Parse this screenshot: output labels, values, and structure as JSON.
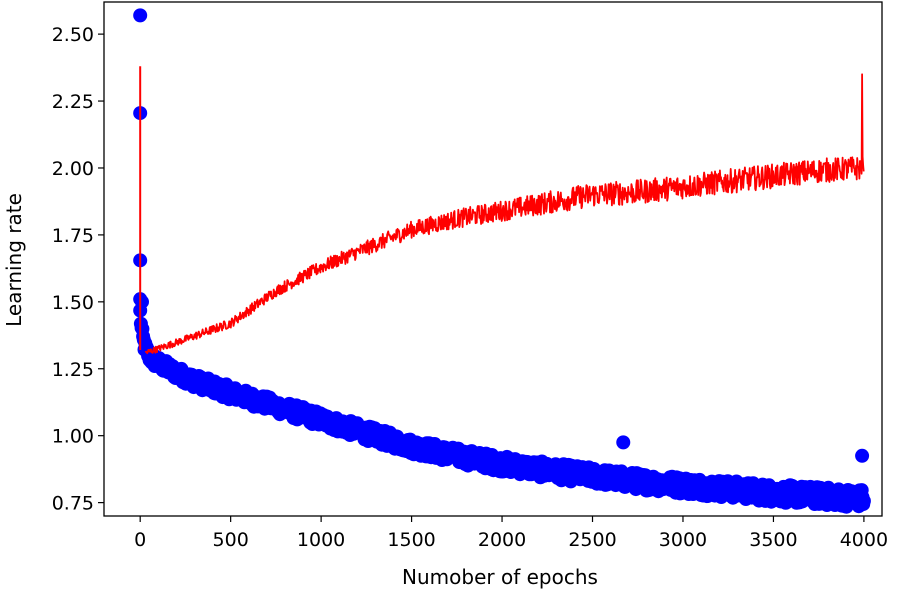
{
  "chart_data": {
    "type": "line+scatter",
    "title": "",
    "xlabel": "Numober of epochs",
    "ylabel": "Learning rate",
    "xlim": [
      -200,
      4100
    ],
    "ylim": [
      0.7,
      2.62
    ],
    "xticks": [
      0,
      500,
      1000,
      1500,
      2000,
      2500,
      3000,
      3500,
      4000
    ],
    "xtick_labels": [
      "0",
      "500",
      "1000",
      "1500",
      "2000",
      "2500",
      "3000",
      "3500",
      "4000"
    ],
    "yticks": [
      0.75,
      1.0,
      1.25,
      1.5,
      1.75,
      2.0,
      2.25,
      2.5
    ],
    "ytick_labels": [
      "0.75",
      "1.00",
      "1.25",
      "1.50",
      "1.75",
      "2.00",
      "2.25",
      "2.50"
    ],
    "grid": false,
    "series": [
      {
        "name": "scatter",
        "kind": "scatter",
        "color": "#0000ff",
        "points": [
          [
            0,
            2.57
          ],
          [
            0,
            2.205
          ],
          [
            0,
            1.655
          ],
          [
            0,
            1.51
          ],
          [
            10,
            1.5
          ],
          [
            2670,
            0.975
          ],
          [
            3990,
            0.925
          ]
        ],
        "trend": [
          [
            0,
            1.46
          ],
          [
            10,
            1.38
          ],
          [
            30,
            1.32
          ],
          [
            60,
            1.29
          ],
          [
            100,
            1.27
          ],
          [
            200,
            1.235
          ],
          [
            300,
            1.205
          ],
          [
            500,
            1.16
          ],
          [
            750,
            1.11
          ],
          [
            1000,
            1.06
          ],
          [
            1250,
            1.01
          ],
          [
            1500,
            0.96
          ],
          [
            1750,
            0.925
          ],
          [
            2000,
            0.895
          ],
          [
            2250,
            0.87
          ],
          [
            2500,
            0.85
          ],
          [
            2750,
            0.83
          ],
          [
            3000,
            0.815
          ],
          [
            3250,
            0.8
          ],
          [
            3500,
            0.785
          ],
          [
            3750,
            0.775
          ],
          [
            4000,
            0.765
          ]
        ],
        "noise": 0.025
      },
      {
        "name": "line",
        "kind": "line",
        "color": "#ff0000",
        "spike": [
          [
            0,
            2.38
          ],
          [
            0,
            1.32
          ]
        ],
        "trend": [
          [
            30,
            1.31
          ],
          [
            100,
            1.325
          ],
          [
            250,
            1.36
          ],
          [
            500,
            1.42
          ],
          [
            750,
            1.54
          ],
          [
            1000,
            1.63
          ],
          [
            1250,
            1.7
          ],
          [
            1500,
            1.77
          ],
          [
            1750,
            1.81
          ],
          [
            2000,
            1.84
          ],
          [
            2250,
            1.87
          ],
          [
            2500,
            1.9
          ],
          [
            2750,
            1.91
          ],
          [
            3000,
            1.93
          ],
          [
            3250,
            1.95
          ],
          [
            3500,
            1.97
          ],
          [
            3750,
            1.99
          ],
          [
            4000,
            2.0
          ]
        ],
        "noise": 0.035,
        "peak": [
          3990,
          2.35
        ]
      }
    ]
  }
}
